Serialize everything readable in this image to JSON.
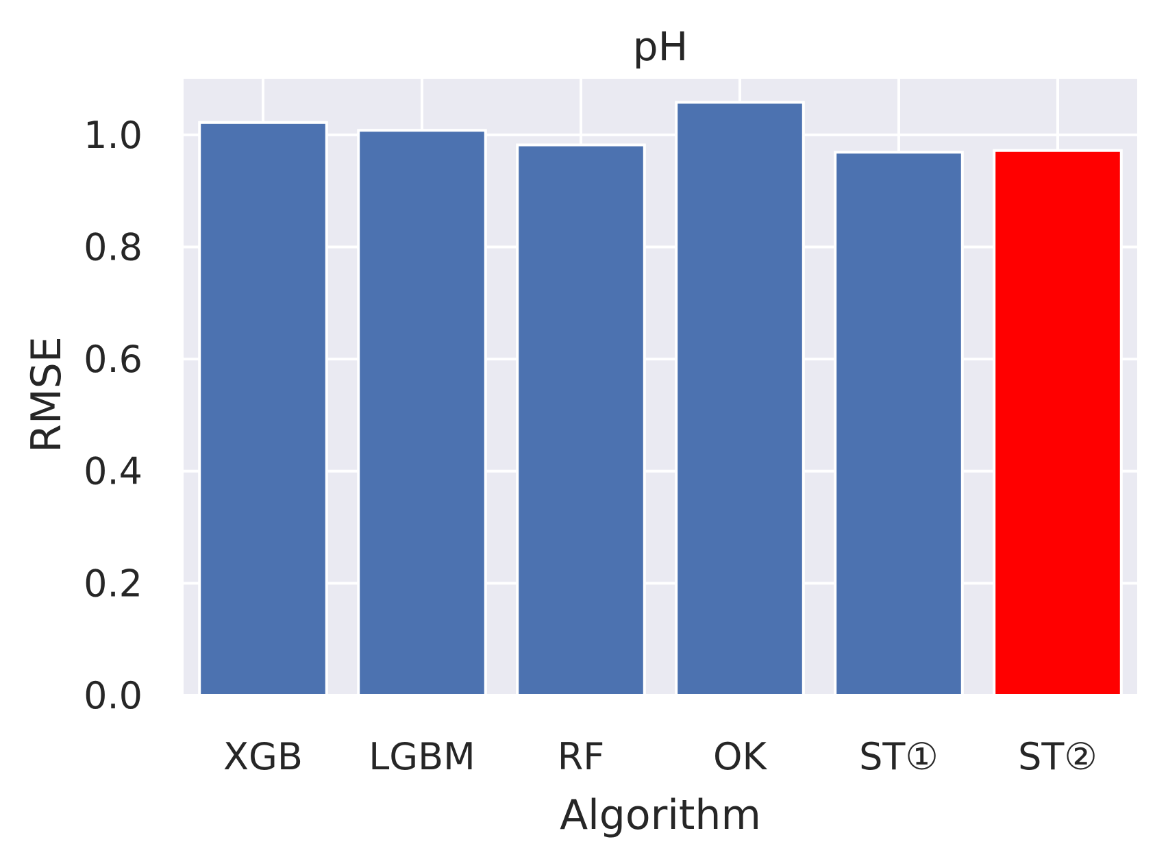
{
  "chart_data": {
    "type": "bar",
    "title": "pH",
    "xlabel": "Algorithm",
    "ylabel": "RMSE",
    "categories": [
      "XGB",
      "LGBM",
      "RF",
      "OK",
      "ST①",
      "ST②"
    ],
    "values": [
      1.022,
      1.008,
      0.982,
      1.058,
      0.969,
      0.972
    ],
    "bar_colors": [
      "#4c72b0",
      "#4c72b0",
      "#4c72b0",
      "#4c72b0",
      "#4c72b0",
      "#ff0000"
    ],
    "ylim": [
      0,
      1.1
    ],
    "yticks": [
      "0.0",
      "0.2",
      "0.4",
      "0.6",
      "0.8",
      "1.0"
    ],
    "ytick_values": [
      0,
      0.2,
      0.4,
      0.6,
      0.8,
      1.0
    ],
    "grid": true,
    "background": "#eaeaf2",
    "grid_color": "#ffffff",
    "text_color": "#262626"
  }
}
